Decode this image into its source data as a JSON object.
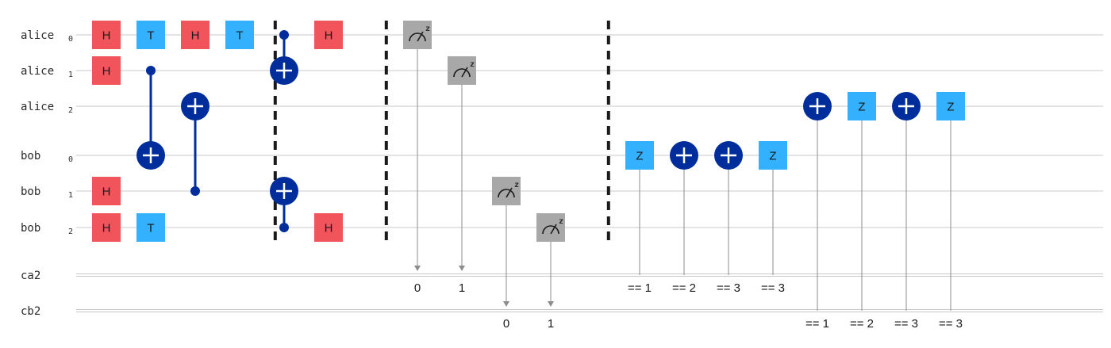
{
  "colors": {
    "h_gate": "#f2545b",
    "single_gate": "#33b1ff",
    "control": "#002d9c",
    "measure": "#a8a8a8",
    "wire": "#c8c8c8",
    "barrier": "#1a1a1a",
    "classical_link": "#8d8d8d"
  },
  "quantum_registers": [
    {
      "name": "alice",
      "index": "0"
    },
    {
      "name": "alice",
      "index": "1"
    },
    {
      "name": "alice",
      "index": "2"
    },
    {
      "name": "bob",
      "index": "0"
    },
    {
      "name": "bob",
      "index": "1"
    },
    {
      "name": "bob",
      "index": "2"
    }
  ],
  "classical_registers": [
    {
      "name": "ca2"
    },
    {
      "name": "cb2"
    }
  ],
  "gates": [
    {
      "type": "H",
      "label": "H",
      "qubit": 0,
      "step": 0
    },
    {
      "type": "T",
      "label": "T",
      "qubit": 0,
      "step": 1
    },
    {
      "type": "H",
      "label": "H",
      "qubit": 0,
      "step": 2
    },
    {
      "type": "T",
      "label": "T",
      "qubit": 0,
      "step": 3
    },
    {
      "type": "H",
      "label": "H",
      "qubit": 1,
      "step": 0
    },
    {
      "type": "H",
      "label": "H",
      "qubit": 4,
      "step": 0
    },
    {
      "type": "H",
      "label": "H",
      "qubit": 5,
      "step": 0
    },
    {
      "type": "T",
      "label": "T",
      "qubit": 5,
      "step": 1
    },
    {
      "type": "H",
      "label": "H",
      "qubit": 0,
      "step": 5
    },
    {
      "type": "H",
      "label": "H",
      "qubit": 5,
      "step": 5
    }
  ],
  "cnots": [
    {
      "control": 1,
      "target": 3,
      "step": 1
    },
    {
      "control": 4,
      "target": 2,
      "step": 2
    },
    {
      "control": 0,
      "target": 1,
      "step": 4
    },
    {
      "control": 5,
      "target": 4,
      "step": 4
    }
  ],
  "barriers": [
    3.8,
    6.3,
    11.3
  ],
  "measurements": [
    {
      "qubit": 0,
      "creg": 0,
      "bit": "0",
      "step": 7
    },
    {
      "qubit": 1,
      "creg": 0,
      "bit": "1",
      "step": 8
    },
    {
      "qubit": 4,
      "creg": 1,
      "bit": "0",
      "step": 9
    },
    {
      "qubit": 5,
      "creg": 1,
      "bit": "1",
      "step": 10
    }
  ],
  "conditionals": [
    {
      "type": "Z",
      "label": "Z",
      "qubit": 3,
      "creg": 0,
      "condition": "== 1",
      "step": 12
    },
    {
      "type": "X",
      "label": "",
      "qubit": 3,
      "creg": 0,
      "condition": "== 2",
      "step": 13
    },
    {
      "type": "X",
      "label": "",
      "qubit": 3,
      "creg": 0,
      "condition": "== 3",
      "step": 14
    },
    {
      "type": "Z",
      "label": "Z",
      "qubit": 3,
      "creg": 0,
      "condition": "== 3",
      "step": 15
    },
    {
      "type": "X",
      "label": "",
      "qubit": 2,
      "creg": 1,
      "condition": "== 1",
      "step": 16
    },
    {
      "type": "Z",
      "label": "Z",
      "qubit": 2,
      "creg": 1,
      "condition": "== 2",
      "step": 17
    },
    {
      "type": "X",
      "label": "",
      "qubit": 2,
      "creg": 1,
      "condition": "== 3",
      "step": 18
    },
    {
      "type": "Z",
      "label": "Z",
      "qubit": 2,
      "creg": 1,
      "condition": "== 3",
      "step": 19
    }
  ]
}
